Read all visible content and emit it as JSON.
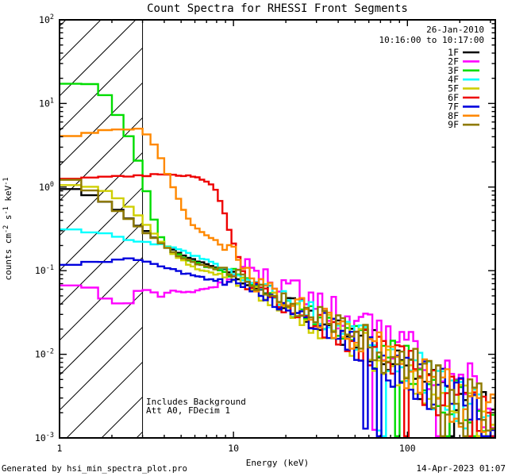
{
  "title": "Count Spectra for RHESSI Front Segments",
  "header": {
    "date": "26-Jan-2010",
    "time_range": "10:16:00 to 10:17:00"
  },
  "annotations": {
    "line1": "Includes Background",
    "line2": "Att A0, FDecim 1"
  },
  "footer": {
    "left": "Generated by hsi_min_spectra_plot.pro",
    "right": "14-Apr-2023 01:07"
  },
  "axes": {
    "xlabel": "Energy (keV)",
    "ylabel_parts": [
      {
        "t": "counts cm"
      },
      {
        "t": "-2",
        "sup": true
      },
      {
        "t": " s"
      },
      {
        "t": "-1",
        "sup": true
      },
      {
        "t": " keV"
      },
      {
        "t": "-1",
        "sup": true
      }
    ],
    "x_ticks": [
      {
        "label": "1",
        "value": 1
      },
      {
        "label": "10",
        "value": 10
      },
      {
        "label": "100",
        "value": 100
      }
    ],
    "y_ticks": [
      {
        "base": "10",
        "exp": "2",
        "value": 100
      },
      {
        "base": "10",
        "exp": "1",
        "value": 10
      },
      {
        "base": "10",
        "exp": "0",
        "value": 1
      },
      {
        "base": "10",
        "exp": "-1",
        "value": 0.1
      },
      {
        "base": "10",
        "exp": "-2",
        "value": 0.01
      },
      {
        "base": "10",
        "exp": "-3",
        "value": 0.001
      }
    ]
  },
  "chart_data": {
    "type": "line",
    "xscale": "log",
    "yscale": "log",
    "xlim": [
      1,
      320
    ],
    "ylim": [
      0.001,
      100
    ],
    "xlabel": "Energy (keV)",
    "ylabel": "counts cm^-2 s^-1 keV^-1",
    "legend_position": "top-right-inside",
    "grid": false,
    "attenuated_hatch_region_keV": [
      1,
      3
    ],
    "hist_bins_keV": "max(1/3, 0.062*E)",
    "series": [
      {
        "name": "1F",
        "color": "#000000",
        "tail_factor": 1.0,
        "anchors": [
          [
            1.0,
            0.98
          ],
          [
            1.35,
            0.88
          ],
          [
            1.7,
            0.72
          ],
          [
            2.1,
            0.55
          ],
          [
            2.5,
            0.42
          ],
          [
            3.0,
            0.32
          ],
          [
            3.6,
            0.24
          ],
          [
            4.3,
            0.185
          ],
          [
            5.2,
            0.15
          ],
          [
            6.5,
            0.125
          ],
          [
            8,
            0.107
          ],
          [
            10,
            0.096
          ],
          [
            12,
            0.075
          ]
        ]
      },
      {
        "name": "2F",
        "color": "#ff00ff",
        "tail_factor": 1.55,
        "anchors": [
          [
            1.0,
            0.071
          ],
          [
            1.45,
            0.064
          ],
          [
            1.8,
            0.047
          ],
          [
            2.15,
            0.04
          ],
          [
            2.55,
            0.042
          ],
          [
            2.9,
            0.06
          ],
          [
            3.4,
            0.056
          ],
          [
            3.9,
            0.049
          ],
          [
            4.5,
            0.059
          ],
          [
            5.3,
            0.054
          ],
          [
            6.2,
            0.058
          ],
          [
            7.5,
            0.063
          ],
          [
            9.0,
            0.068
          ],
          [
            12,
            0.112
          ]
        ]
      },
      {
        "name": "3F",
        "color": "#00dd00",
        "tail_factor": 1.0,
        "anchors": [
          [
            1.0,
            16.2
          ],
          [
            1.1,
            17.4
          ],
          [
            1.62,
            17.0
          ],
          [
            1.75,
            14.5
          ],
          [
            1.95,
            10.5
          ],
          [
            2.25,
            6.2
          ],
          [
            2.6,
            3.4
          ],
          [
            2.95,
            1.6
          ],
          [
            3.1,
            1.05
          ],
          [
            3.35,
            0.52
          ],
          [
            3.7,
            0.28
          ],
          [
            4.3,
            0.175
          ],
          [
            5.2,
            0.14
          ],
          [
            6.5,
            0.118
          ],
          [
            8,
            0.103
          ],
          [
            10,
            0.092
          ],
          [
            12,
            0.079
          ]
        ]
      },
      {
        "name": "4F",
        "color": "#00ffff",
        "tail_factor": 1.05,
        "anchors": [
          [
            1.0,
            0.32
          ],
          [
            1.6,
            0.29
          ],
          [
            2.2,
            0.25
          ],
          [
            3.0,
            0.22
          ],
          [
            4.0,
            0.2
          ],
          [
            5.0,
            0.175
          ],
          [
            6.0,
            0.15
          ],
          [
            7.2,
            0.13
          ],
          [
            8.5,
            0.115
          ],
          [
            10,
            0.1
          ],
          [
            12,
            0.079
          ]
        ]
      },
      {
        "name": "5F",
        "color": "#cfcf00",
        "tail_factor": 0.88,
        "anchors": [
          [
            1.0,
            1.06
          ],
          [
            1.5,
            1.0
          ],
          [
            1.9,
            0.87
          ],
          [
            2.3,
            0.67
          ],
          [
            2.7,
            0.5
          ],
          [
            3.1,
            0.36
          ],
          [
            3.6,
            0.26
          ],
          [
            4.2,
            0.18
          ],
          [
            5.0,
            0.135
          ],
          [
            6.0,
            0.108
          ],
          [
            7.5,
            0.094
          ],
          [
            9.0,
            0.087
          ],
          [
            12,
            0.068
          ]
        ]
      },
      {
        "name": "6F",
        "color": "#ee0000",
        "tail_factor": 0.95,
        "anchors": [
          [
            1.0,
            1.27
          ],
          [
            1.6,
            1.33
          ],
          [
            2.5,
            1.36
          ],
          [
            3.5,
            1.4
          ],
          [
            5.0,
            1.4
          ],
          [
            6.0,
            1.35
          ],
          [
            6.8,
            1.22
          ],
          [
            7.4,
            1.08
          ],
          [
            7.9,
            0.92
          ],
          [
            8.4,
            0.72
          ],
          [
            8.9,
            0.52
          ],
          [
            9.4,
            0.35
          ],
          [
            9.9,
            0.23
          ],
          [
            10.4,
            0.155
          ],
          [
            10.9,
            0.115
          ],
          [
            11.4,
            0.092
          ],
          [
            12,
            0.074
          ]
        ]
      },
      {
        "name": "7F",
        "color": "#0000dd",
        "tail_factor": 0.88,
        "anchors": [
          [
            1.0,
            0.115
          ],
          [
            1.4,
            0.124
          ],
          [
            2.0,
            0.132
          ],
          [
            2.4,
            0.14
          ],
          [
            3.1,
            0.133
          ],
          [
            3.7,
            0.118
          ],
          [
            4.5,
            0.102
          ],
          [
            5.5,
            0.09
          ],
          [
            7.0,
            0.08
          ],
          [
            8.5,
            0.075
          ],
          [
            10,
            0.072
          ],
          [
            12,
            0.066
          ]
        ]
      },
      {
        "name": "8F",
        "color": "#ff8800",
        "tail_factor": 1.05,
        "anchors": [
          [
            1.0,
            3.8
          ],
          [
            1.3,
            4.3
          ],
          [
            1.7,
            4.65
          ],
          [
            2.2,
            4.9
          ],
          [
            2.7,
            5.0
          ],
          [
            3.1,
            4.6
          ],
          [
            3.45,
            3.4
          ],
          [
            3.8,
            2.3
          ],
          [
            4.15,
            1.5
          ],
          [
            4.55,
            0.95
          ],
          [
            5.0,
            0.62
          ],
          [
            5.5,
            0.42
          ],
          [
            6.1,
            0.32
          ],
          [
            7.0,
            0.26
          ],
          [
            8.2,
            0.22
          ],
          [
            10,
            0.17
          ],
          [
            11.5,
            0.12
          ],
          [
            13,
            0.085
          ]
        ]
      },
      {
        "name": "9F",
        "color": "#8f7a00",
        "tail_factor": 1.05,
        "anchors": [
          [
            1.0,
            1.45
          ],
          [
            1.25,
            1.08
          ],
          [
            1.55,
            0.85
          ],
          [
            1.9,
            0.63
          ],
          [
            2.3,
            0.47
          ],
          [
            2.7,
            0.36
          ],
          [
            3.2,
            0.28
          ],
          [
            3.8,
            0.21
          ],
          [
            4.6,
            0.16
          ],
          [
            5.6,
            0.13
          ],
          [
            7.0,
            0.112
          ],
          [
            8.5,
            0.1
          ],
          [
            10,
            0.093
          ],
          [
            12,
            0.079
          ]
        ]
      }
    ],
    "common_tail": {
      "note": "above ~12 keV all nine segments converge to this noisy power-law background band",
      "points": [
        [
          12,
          0.075
        ],
        [
          15,
          0.058
        ],
        [
          20,
          0.042
        ],
        [
          30,
          0.027
        ],
        [
          40,
          0.0195
        ],
        [
          60,
          0.0125
        ],
        [
          90,
          0.0075
        ],
        [
          130,
          0.0048
        ],
        [
          200,
          0.0027
        ],
        [
          320,
          0.00135
        ]
      ]
    },
    "noise": {
      "seed": 12345,
      "sigma_rule": "E<8 ? 0.012 : min(0.38, 0.04+0.22*log10(E/8))",
      "dropout_above_keV": 55,
      "dropout_prob": 0.05,
      "floor": 0.00105
    }
  },
  "colors": {
    "background": "#ffffff",
    "axes": "#000000",
    "text": "#000000"
  }
}
